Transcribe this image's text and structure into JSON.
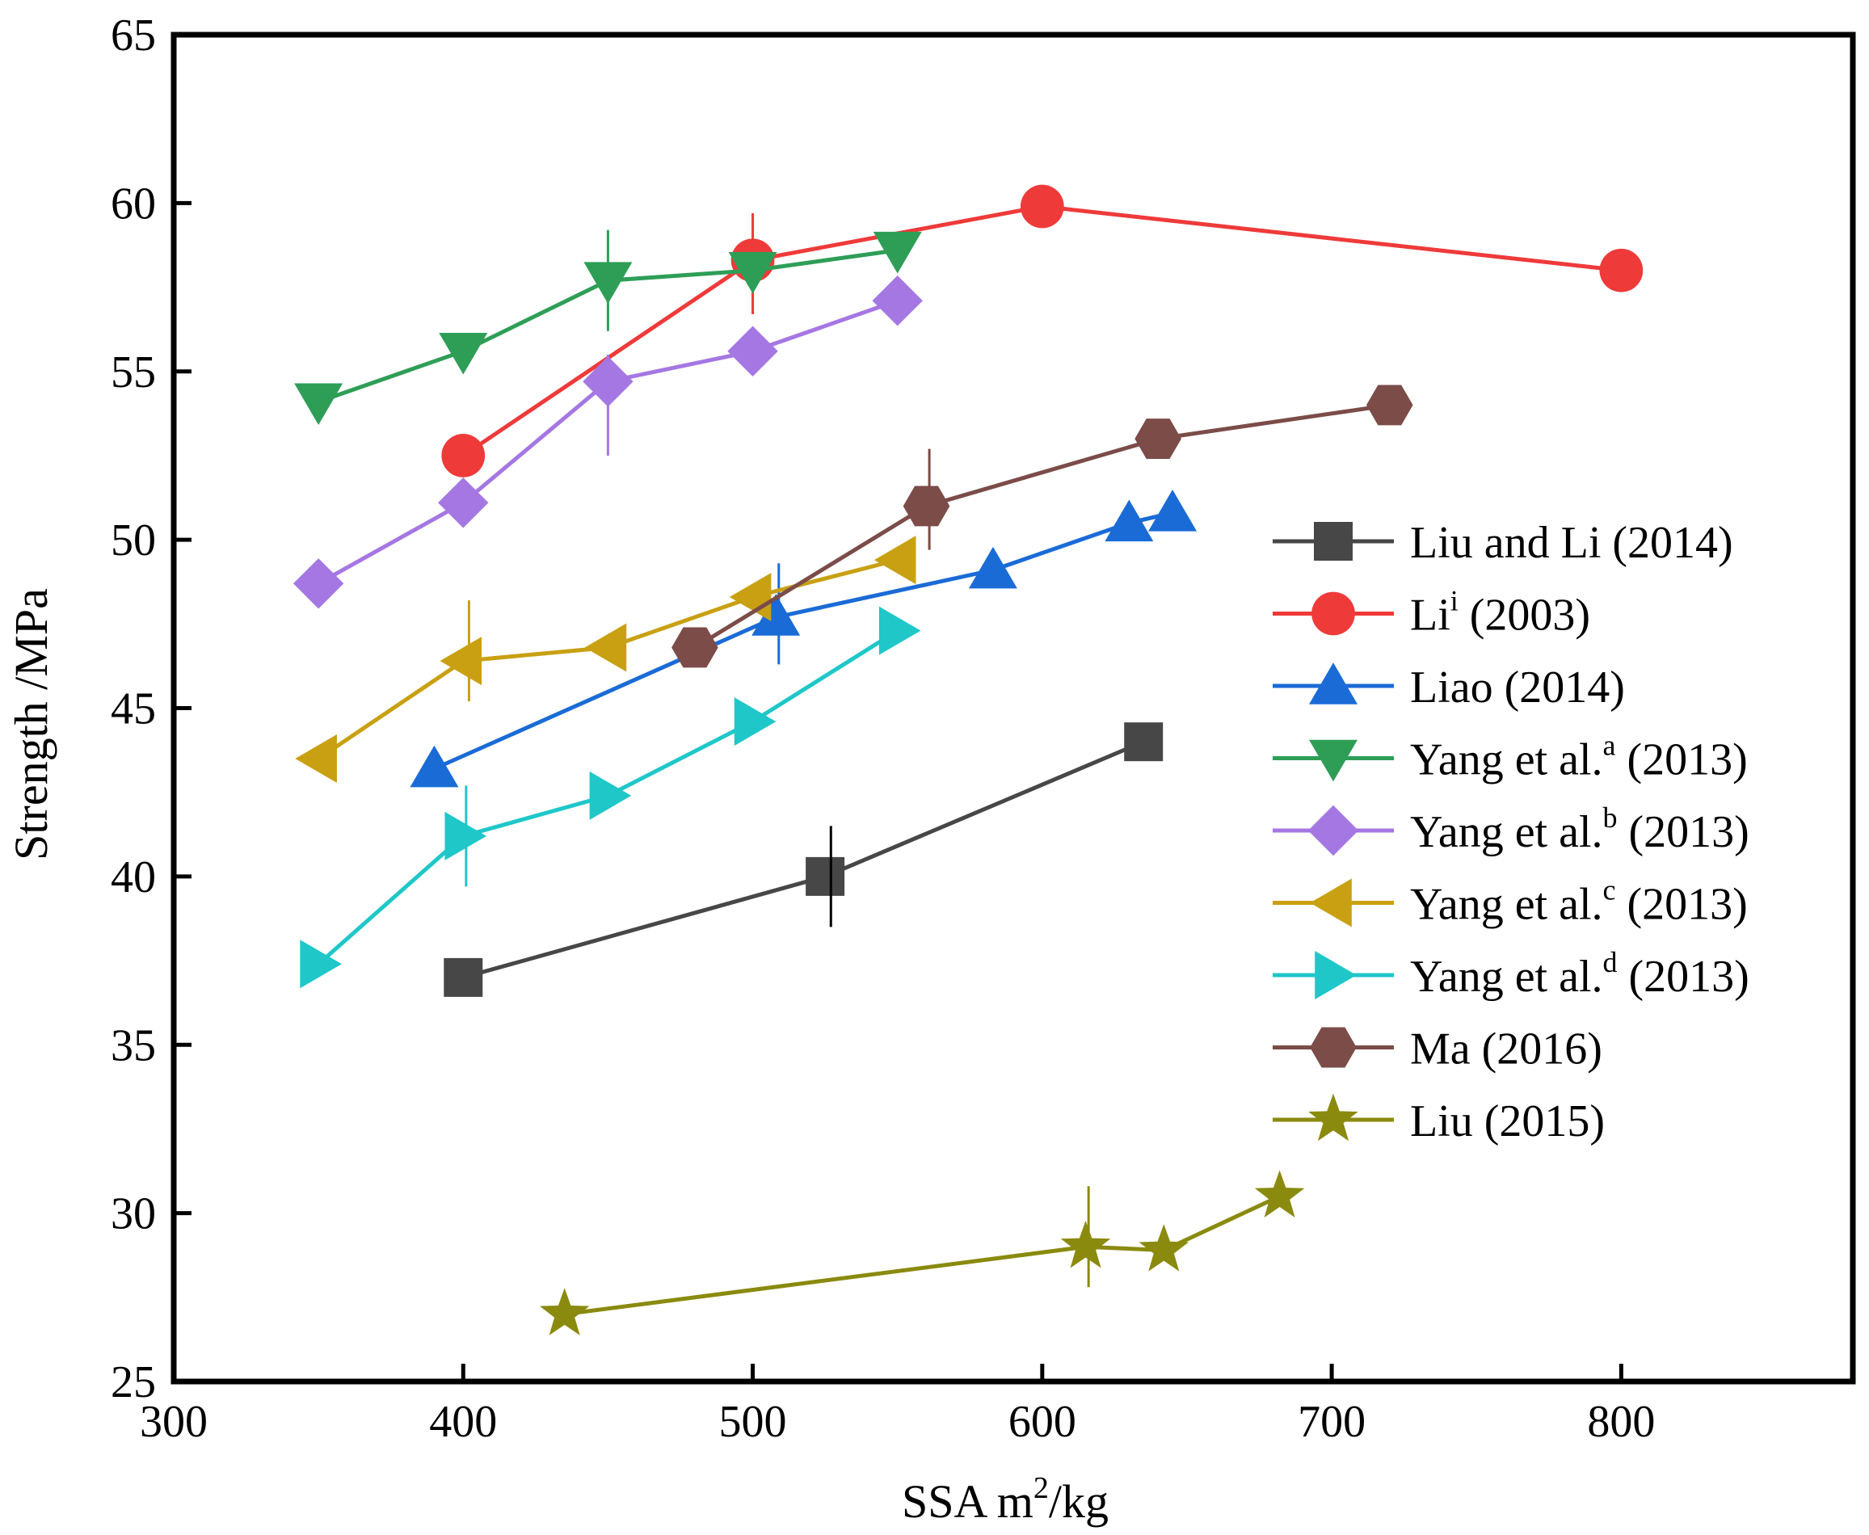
{
  "chart_data": {
    "type": "line",
    "xlabel": "SSA m",
    "xlabel_sup": "2",
    "xlabel_tail": "/kg",
    "ylabel": "Strength /MPa",
    "xlim": [
      300,
      880
    ],
    "ylim": [
      25,
      65
    ],
    "xticks": [
      300,
      400,
      500,
      600,
      700,
      800
    ],
    "yticks": [
      25,
      30,
      35,
      40,
      45,
      50,
      55,
      60,
      65
    ],
    "grid": false,
    "legend_position": "right",
    "series": [
      {
        "name": "Liu and Li (2014)",
        "base": "Liu and Li (2014)",
        "sup": "",
        "tail": "",
        "color": "#474747",
        "marker": "square",
        "x": [
          400,
          525,
          635
        ],
        "y": [
          37,
          40,
          44
        ],
        "error": [
          {
            "x": 527,
            "y": 40,
            "err": 1.5
          }
        ]
      },
      {
        "name": "Li (2003)",
        "base": "Li",
        "sup": "i",
        "tail": " (2003)",
        "color": "#ef3a3a",
        "marker": "circle",
        "x": [
          400,
          500,
          600,
          800
        ],
        "y": [
          52.5,
          58.3,
          59.9,
          58
        ],
        "error": [
          {
            "x": 500,
            "y": 58.2,
            "err": 1.5
          }
        ]
      },
      {
        "name": "Liao (2014)",
        "base": "Liao (2014)",
        "sup": "",
        "tail": "",
        "color": "#1a6bd6",
        "marker": "triangle-up",
        "x": [
          390,
          508,
          583,
          630,
          645
        ],
        "y": [
          43.2,
          47.7,
          49.1,
          50.5,
          50.8
        ],
        "error": [
          {
            "x": 509,
            "y": 47.8,
            "err": 1.5
          }
        ]
      },
      {
        "name": "Yang et al.a (2013)",
        "base": "Yang et al.",
        "sup": "a",
        "tail": " (2013)",
        "color": "#2e9e57",
        "marker": "triangle-down",
        "x": [
          350,
          400,
          450,
          500,
          550
        ],
        "y": [
          54.1,
          55.6,
          57.7,
          58,
          58.6
        ],
        "error": [
          {
            "x": 450,
            "y": 57.7,
            "err": 1.5
          }
        ]
      },
      {
        "name": "Yang et al.b (2013)",
        "base": "Yang et al.",
        "sup": "b",
        "tail": " (2013)",
        "color": "#a577e3",
        "marker": "diamond",
        "x": [
          350,
          400,
          450,
          500,
          550
        ],
        "y": [
          48.7,
          51.1,
          54.7,
          55.6,
          57.1
        ],
        "error": [
          {
            "x": 450,
            "y": 54,
            "err": 1.5
          }
        ]
      },
      {
        "name": "Yang et al.c (2013)",
        "base": "Yang et al.",
        "sup": "c",
        "tail": " (2013)",
        "color": "#c9a012",
        "marker": "triangle-left",
        "x": [
          350,
          400,
          450,
          500,
          550
        ],
        "y": [
          43.5,
          46.4,
          46.8,
          48.3,
          49.4
        ],
        "error": [
          {
            "x": 402,
            "y": 46.7,
            "err": 1.5
          }
        ]
      },
      {
        "name": "Yang et al.d (2013)",
        "base": "Yang et al.",
        "sup": "d",
        "tail": " (2013)",
        "color": "#1fc7c9",
        "marker": "triangle-right",
        "x": [
          350,
          400,
          450,
          500,
          550
        ],
        "y": [
          37.4,
          41.2,
          42.4,
          44.6,
          47.3
        ],
        "error": [
          {
            "x": 401,
            "y": 41.2,
            "err": 1.5
          }
        ]
      },
      {
        "name": "Ma (2016)",
        "base": "Ma (2016)",
        "sup": "",
        "tail": "",
        "color": "#7b4c48",
        "marker": "hexagon",
        "x": [
          480,
          560,
          640,
          720
        ],
        "y": [
          46.8,
          51,
          53,
          54
        ],
        "error": [
          {
            "x": 561,
            "y": 51.2,
            "err": 1.5
          }
        ]
      },
      {
        "name": "Liu (2015)",
        "base": "Liu (2015)",
        "sup": "",
        "tail": "",
        "color": "#8a8a0f",
        "marker": "star",
        "x": [
          435,
          615,
          642,
          682
        ],
        "y": [
          27,
          29,
          28.9,
          30.5
        ],
        "error": [
          {
            "x": 616,
            "y": 29.3,
            "err": 1.5
          }
        ]
      }
    ]
  }
}
